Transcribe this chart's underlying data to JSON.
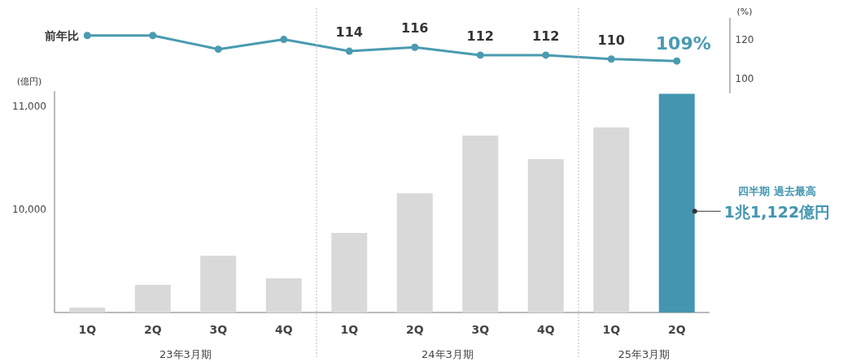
{
  "chart_data": [
    {
      "type": "line",
      "categories": [
        null,
        null,
        null,
        null,
        null,
        null,
        null,
        null,
        null,
        null
      ],
      "tick_labels": "y",
      "series": [
        {
          "name": "前年比",
          "color": "#4a9bb0",
          "marker": "circle",
          "values": [
            122,
            122,
            115,
            120,
            114,
            116,
            112,
            112,
            110,
            109
          ],
          "value_labels": [
            null,
            null,
            null,
            null,
            "114",
            "116",
            "112",
            "112",
            "110",
            "109%"
          ]
        }
      ],
      "ylabel": "(%)",
      "ylim": [
        92.5,
        131
      ],
      "yticks": [
        100,
        120
      ]
    },
    {
      "type": "bar",
      "categories": [
        "1Q",
        "2Q",
        "3Q",
        "4Q",
        "1Q",
        "2Q",
        "3Q",
        "4Q",
        "1Q",
        "2Q"
      ],
      "series": [
        {
          "colors": [
            "#d9d9d9",
            "#d9d9d9",
            "#d9d9d9",
            "#d9d9d9",
            "#d9d9d9",
            "#d9d9d9",
            "#d9d9d9",
            "#d9d9d9",
            "#d9d9d9",
            "#4496b0"
          ],
          "values": [
            9047,
            9268,
            9551,
            9331,
            9772,
            10157,
            10717,
            10488,
            10795,
            11122
          ]
        }
      ],
      "ylabel": "(億円)",
      "ylim": [
        9000,
        11150
      ],
      "yticks": [
        {
          "value": 10000,
          "label": "10,000"
        },
        {
          "value": 11000,
          "label": "11,000"
        }
      ],
      "annotations": [
        "23年3月期",
        "24年3月期",
        "25年3月期",
        "四半期 過去最高",
        "1兆1,122億円"
      ]
    }
  ]
}
